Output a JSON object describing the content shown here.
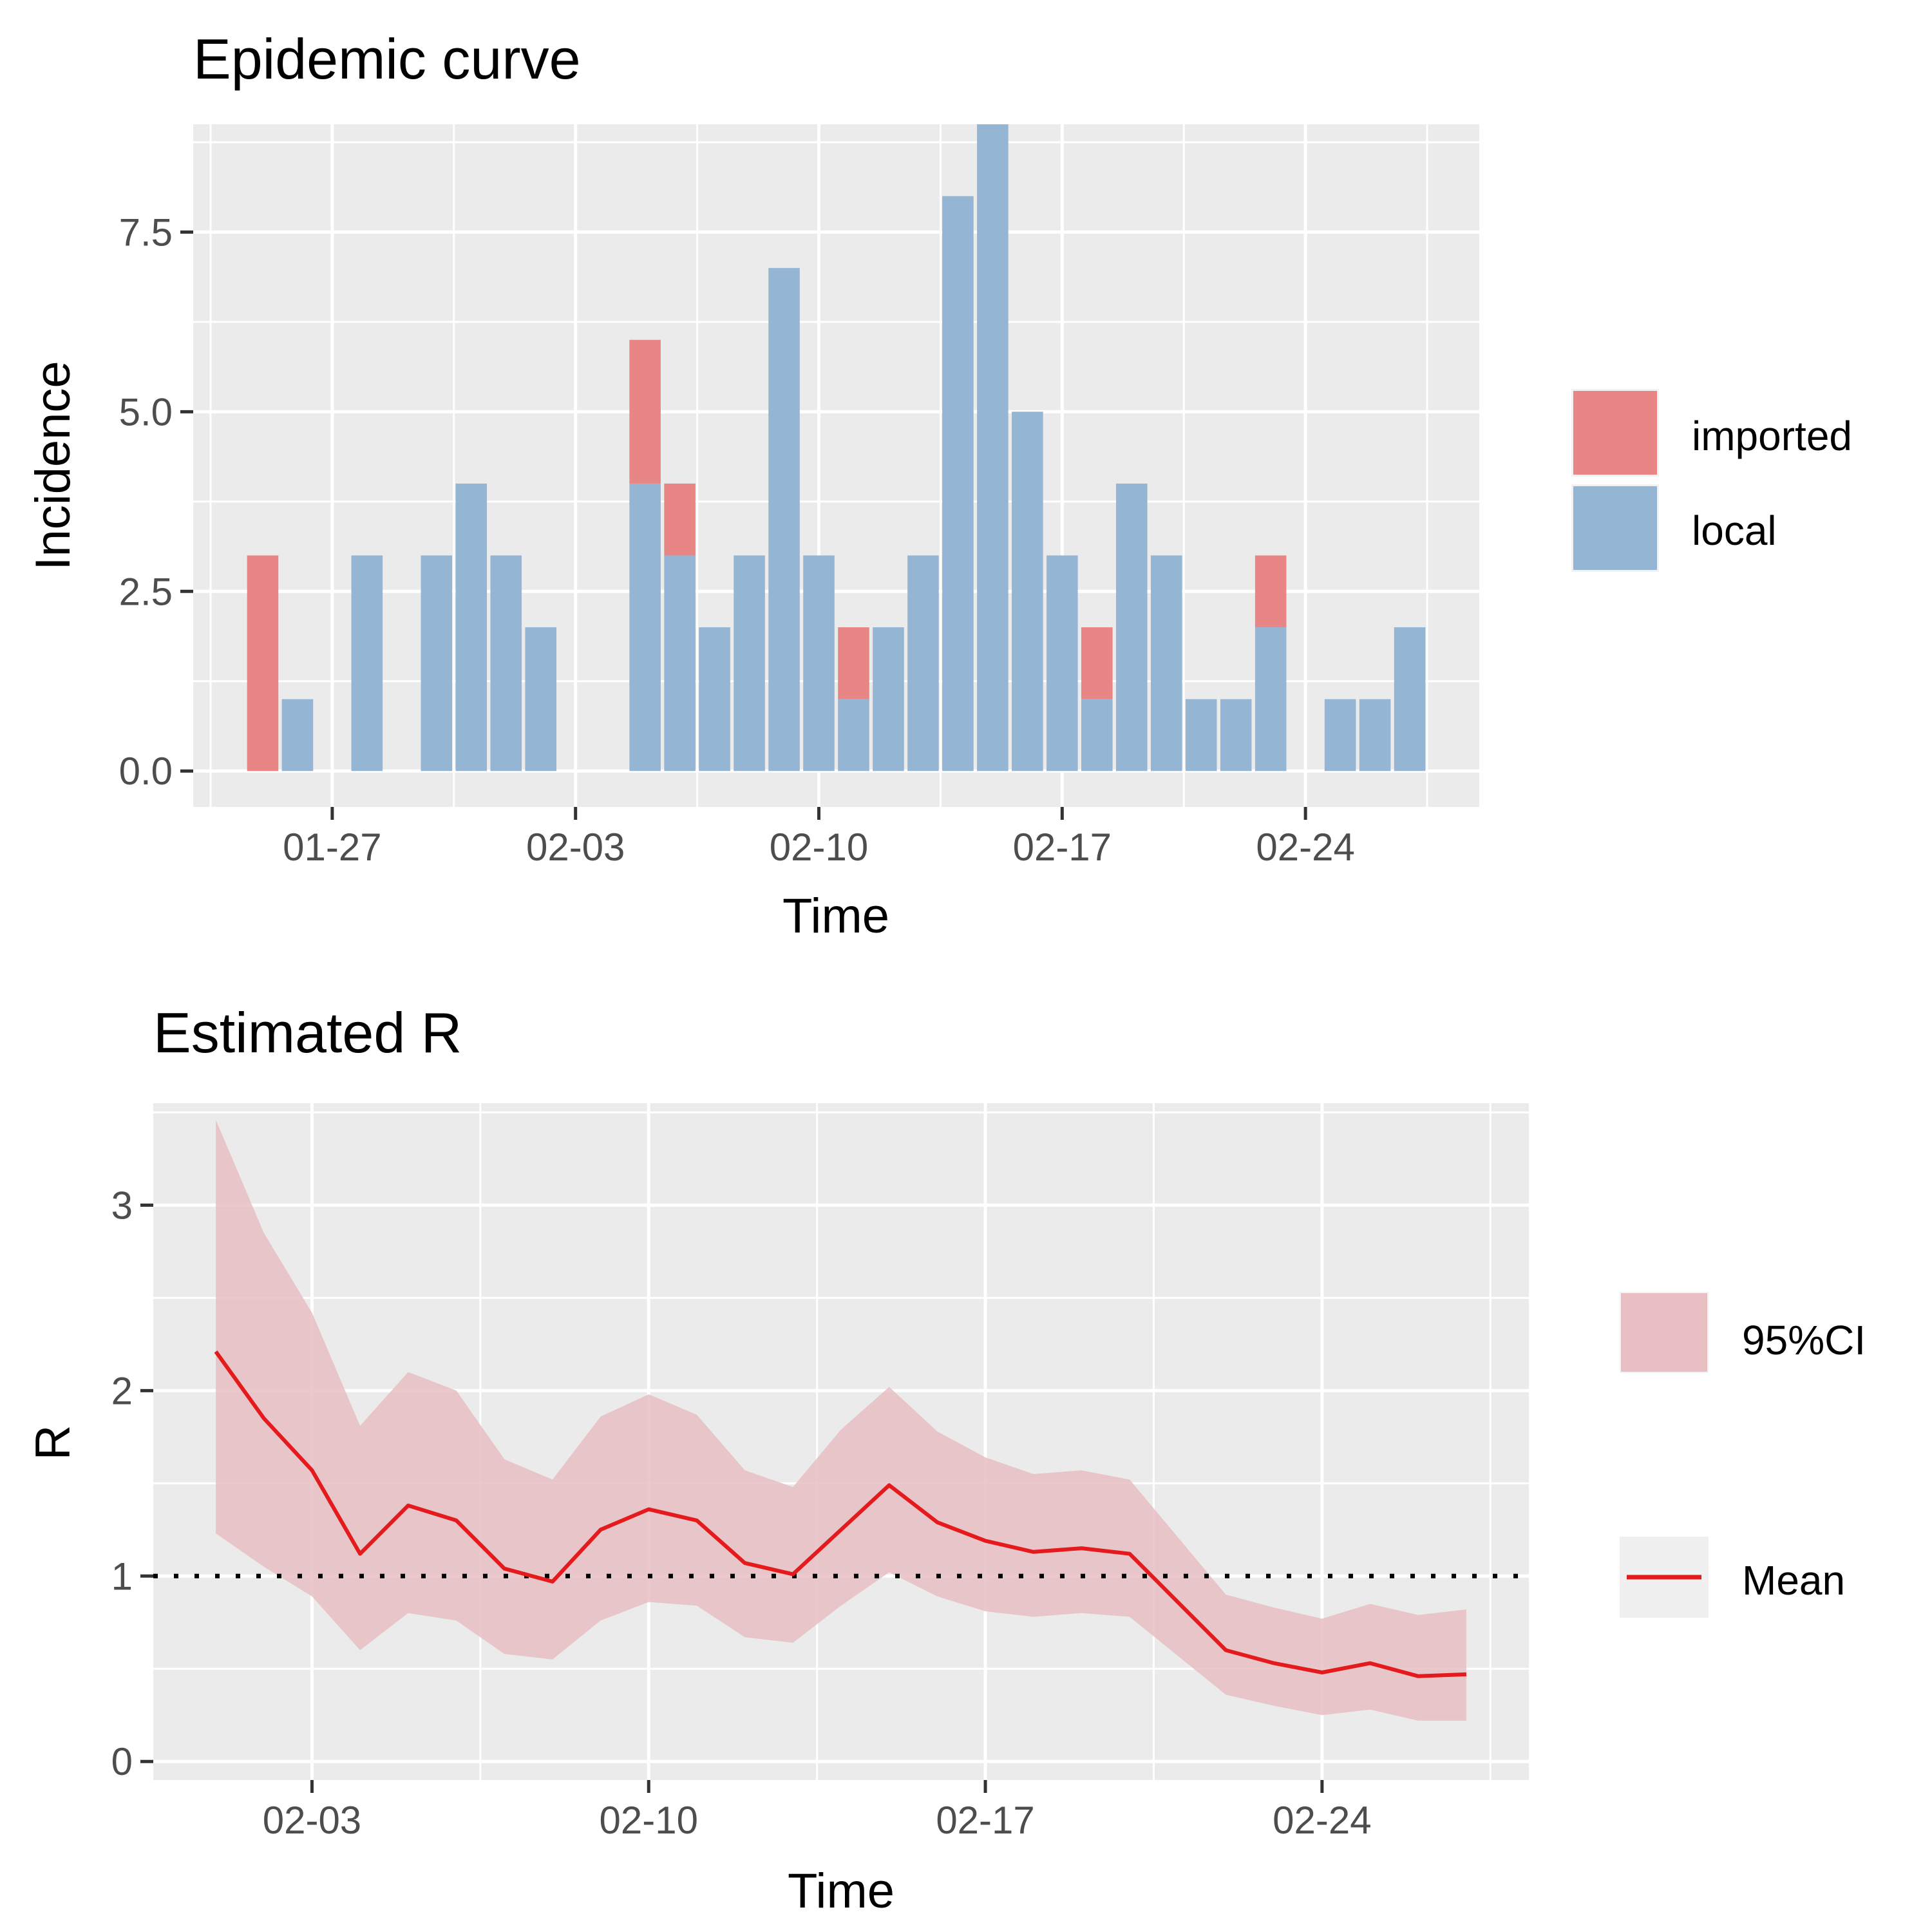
{
  "colors": {
    "panel_bg": "#EBEBEB",
    "grid": "#FFFFFF",
    "imported": "#E88585",
    "local": "#94B5D4",
    "ci_fill": "#E8BEC2",
    "mean_line": "#E41A1C",
    "tick": "#333333"
  },
  "chart_data": [
    {
      "type": "bar",
      "stacked": true,
      "title": "Epidemic curve",
      "xlabel": "Time",
      "ylabel": "Incidence",
      "x_range": [
        "01-23",
        "02-29"
      ],
      "ylim": [
        -0.5,
        9.0
      ],
      "y_ticks": [
        0.0,
        2.5,
        5.0,
        7.5
      ],
      "y_tick_labels": [
        "0.0",
        "2.5",
        "5.0",
        "7.5"
      ],
      "x_ticks": [
        "01-27",
        "02-03",
        "02-10",
        "02-17",
        "02-24"
      ],
      "grid": true,
      "legend_position": "right",
      "categories": [
        "01-25",
        "01-26",
        "01-27",
        "01-28",
        "01-29",
        "01-30",
        "01-31",
        "02-01",
        "02-02",
        "02-03",
        "02-04",
        "02-05",
        "02-06",
        "02-07",
        "02-08",
        "02-09",
        "02-10",
        "02-11",
        "02-12",
        "02-13",
        "02-14",
        "02-15",
        "02-16",
        "02-17",
        "02-18",
        "02-19",
        "02-20",
        "02-21",
        "02-22",
        "02-23",
        "02-24",
        "02-25",
        "02-26",
        "02-27"
      ],
      "series": [
        {
          "name": "local",
          "values": [
            0,
            1,
            0,
            3,
            0,
            3,
            4,
            3,
            2,
            0,
            0,
            4,
            3,
            2,
            3,
            7,
            3,
            1,
            2,
            3,
            8,
            9,
            5,
            3,
            1,
            4,
            3,
            1,
            1,
            2,
            0,
            1,
            1,
            2
          ]
        },
        {
          "name": "imported",
          "values": [
            3,
            0,
            0,
            0,
            0,
            0,
            0,
            0,
            0,
            0,
            0,
            2,
            1,
            0,
            0,
            0,
            0,
            1,
            0,
            0,
            0,
            0,
            0,
            0,
            1,
            0,
            0,
            0,
            0,
            1,
            0,
            0,
            0,
            0
          ]
        }
      ],
      "legend": [
        "imported",
        "local"
      ]
    },
    {
      "type": "line",
      "title": "Estimated R",
      "xlabel": "Time",
      "ylabel": "R",
      "x_range": [
        "01-31",
        "02-28"
      ],
      "ylim": [
        -0.1,
        3.55
      ],
      "y_ticks": [
        0,
        1,
        2,
        3
      ],
      "y_tick_labels": [
        "0",
        "1",
        "2",
        "3"
      ],
      "x_ticks": [
        "02-03",
        "02-10",
        "02-17",
        "02-24"
      ],
      "reference_line": {
        "y": 1,
        "style": "dotted"
      },
      "grid": true,
      "legend_position": "right",
      "x": [
        "02-01",
        "02-02",
        "02-03",
        "02-04",
        "02-05",
        "02-06",
        "02-07",
        "02-08",
        "02-09",
        "02-10",
        "02-11",
        "02-12",
        "02-13",
        "02-14",
        "02-15",
        "02-16",
        "02-17",
        "02-18",
        "02-19",
        "02-20",
        "02-21",
        "02-22",
        "02-23",
        "02-24",
        "02-25",
        "02-26",
        "02-27"
      ],
      "series": [
        {
          "name": "Mean",
          "values": [
            2.21,
            1.85,
            1.57,
            1.12,
            1.38,
            1.3,
            1.04,
            0.97,
            1.25,
            1.36,
            1.3,
            1.07,
            1.01,
            1.25,
            1.49,
            1.29,
            1.19,
            1.13,
            1.15,
            1.12,
            0.86,
            0.6,
            0.53,
            0.48,
            0.53,
            0.46,
            0.47
          ]
        },
        {
          "name": "95%CI upper",
          "values": [
            3.46,
            2.85,
            2.42,
            1.81,
            2.1,
            2.0,
            1.63,
            1.52,
            1.86,
            1.98,
            1.87,
            1.57,
            1.48,
            1.79,
            2.02,
            1.78,
            1.64,
            1.55,
            1.57,
            1.52,
            1.21,
            0.9,
            0.83,
            0.77,
            0.85,
            0.79,
            0.82
          ]
        },
        {
          "name": "95%CI lower",
          "values": [
            1.23,
            1.05,
            0.89,
            0.6,
            0.8,
            0.76,
            0.58,
            0.55,
            0.76,
            0.86,
            0.84,
            0.67,
            0.64,
            0.84,
            1.02,
            0.89,
            0.81,
            0.78,
            0.8,
            0.78,
            0.57,
            0.36,
            0.3,
            0.25,
            0.28,
            0.22,
            0.22
          ]
        }
      ],
      "legend": [
        "95%CI",
        "Mean"
      ]
    }
  ]
}
